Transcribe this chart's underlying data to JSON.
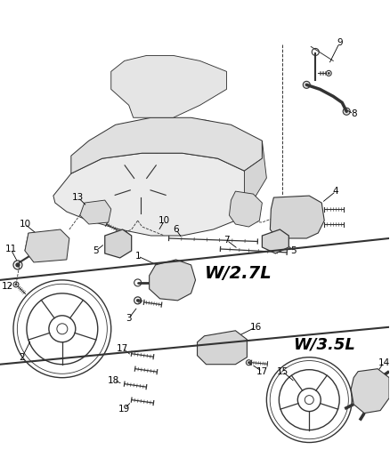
{
  "background_color": "#ffffff",
  "line_color": "#333333",
  "text_color": "#000000",
  "w27l_label": "W/2.7L",
  "w35l_label": "W/3.5L",
  "figsize": [
    4.38,
    5.33
  ],
  "dpi": 100,
  "engine_color": "#e8e8e8",
  "part_color": "#d8d8d8",
  "lw_main": 0.8,
  "lw_detail": 0.5,
  "label_fs": 7.5
}
